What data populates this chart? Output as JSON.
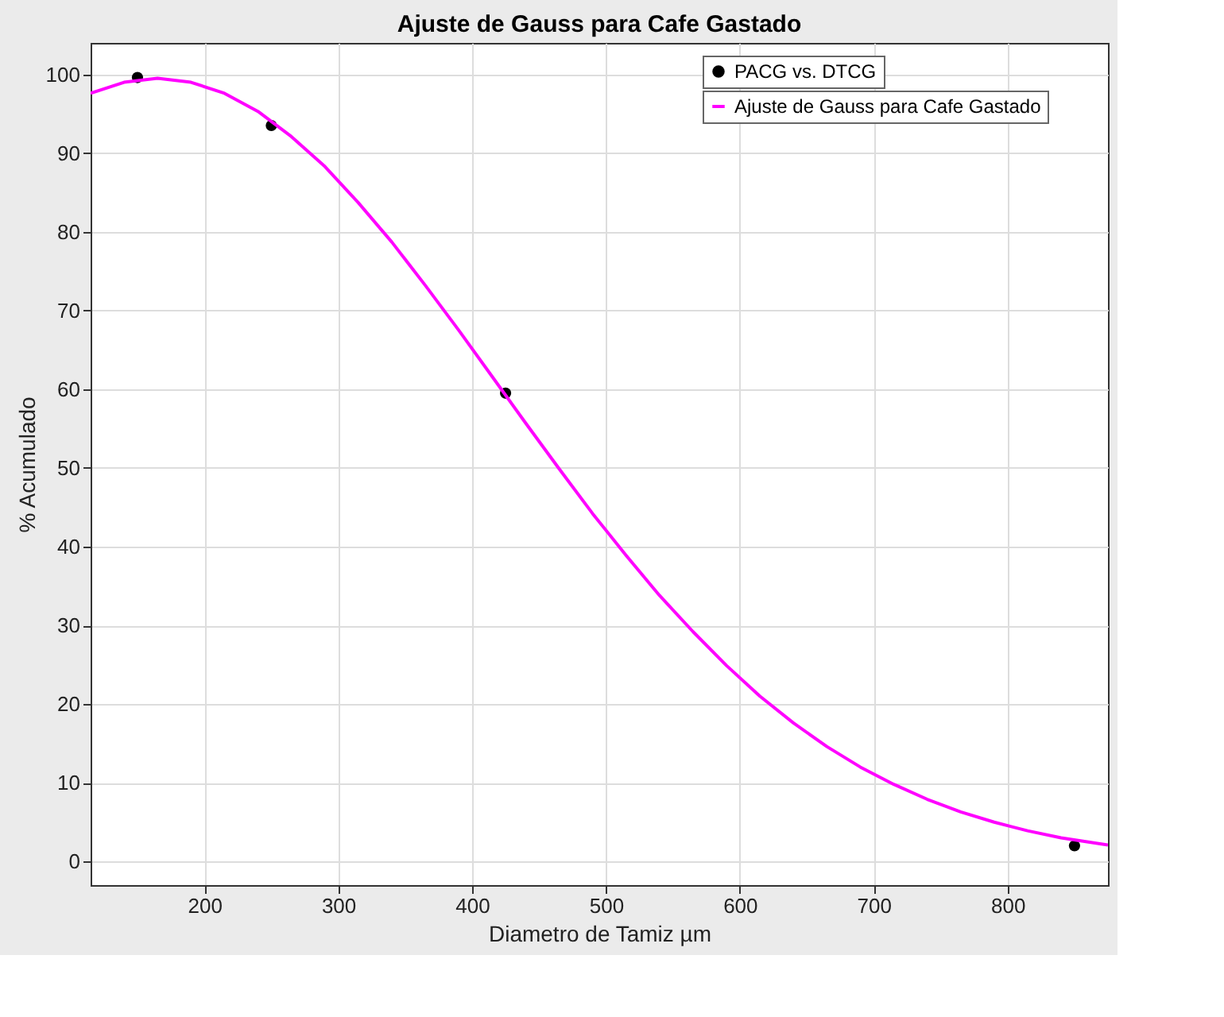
{
  "chart_data": {
    "type": "line",
    "title": "Ajuste de Gauss para Cafe Gastado",
    "xlabel": "Diametro de Tamiz µm",
    "ylabel": "% Acumulado",
    "xlim": [
      115,
      875
    ],
    "xticks": [
      200,
      300,
      400,
      500,
      600,
      700,
      800
    ],
    "ylim": [
      -3,
      104
    ],
    "yticks": [
      0,
      10,
      20,
      30,
      40,
      50,
      60,
      70,
      80,
      90,
      100
    ],
    "grid": true,
    "legend": "top right",
    "line_style": "solid",
    "series": [
      {
        "name": "PACG vs. DTCG",
        "type": "scatter",
        "marker": "circle",
        "color": "#000000",
        "x": [
          150,
          250,
          425,
          850
        ],
        "values": [
          99.6,
          93.5,
          59.5,
          2
        ]
      },
      {
        "name": "Ajuste de Gauss para Cafe Gastado",
        "color": "#ff00ff",
        "x": [
          115,
          140,
          165,
          190,
          215,
          240,
          265,
          290,
          315,
          340,
          365,
          390,
          415,
          440,
          465,
          490,
          515,
          540,
          565,
          590,
          615,
          640,
          665,
          690,
          715,
          740,
          765,
          790,
          815,
          840,
          875
        ],
        "values": [
          97.6,
          99.0,
          99.5,
          99.0,
          97.6,
          95.3,
          92.1,
          88.3,
          83.7,
          78.7,
          73.2,
          67.5,
          61.6,
          55.7,
          49.9,
          44.2,
          38.9,
          33.8,
          29.2,
          24.9,
          21.0,
          17.6,
          14.6,
          12.0,
          9.8,
          7.9,
          6.3,
          5.0,
          3.9,
          3.0,
          2.1
        ]
      }
    ]
  }
}
